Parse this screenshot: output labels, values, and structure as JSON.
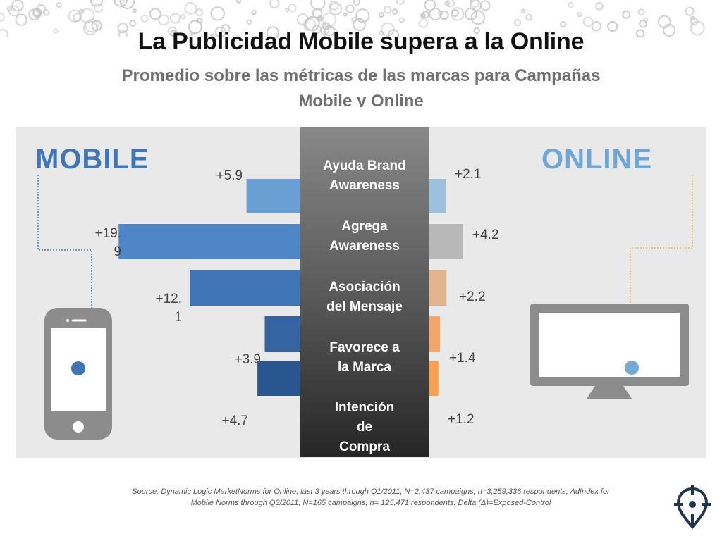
{
  "title": "La Publicidad Mobile supera a la Online",
  "subtitle": "Promedio sobre las métricas de las marcas para Campañas Mobile y Online",
  "labels": {
    "mobile": "MOBILE",
    "online": "ONLINE"
  },
  "categories": [
    "Ayuda Brand\nAwareness",
    "Agrega\nAwareness",
    "Asociación\ndel Mensaje",
    "Favorece a\nla Marca",
    "Intención\nde\nCompra"
  ],
  "value_labels": {
    "mobile": [
      "+5.9",
      "+19.\n9",
      "+12.\n1",
      "+3.9",
      "+4.7"
    ],
    "online": [
      "+2.1",
      "+4.2",
      "+2.2",
      "+1.4",
      "+1.2"
    ]
  },
  "chart_data": {
    "type": "bar",
    "title": "La Publicidad Mobile supera a la Online",
    "subtitle": "Promedio sobre las métricas de las marcas para Campañas Mobile y Online",
    "categories": [
      "Ayuda Brand Awareness",
      "Agrega Awareness",
      "Asociación del Mensaje",
      "Favorece a la Marca",
      "Intención de Compra"
    ],
    "series": [
      {
        "name": "MOBILE",
        "values": [
          5.9,
          19.9,
          12.1,
          3.9,
          4.7
        ]
      },
      {
        "name": "ONLINE",
        "values": [
          2.1,
          4.2,
          2.2,
          1.4,
          1.2
        ]
      }
    ],
    "orientation": "horizontal-diverging",
    "grid": false
  },
  "colors": {
    "mobile_bars": [
      "#6a9fd4",
      "#4f86c7",
      "#3f74b6",
      "#3464a2",
      "#2a568f"
    ],
    "online_bars": [
      "#9cc1dc",
      "#b8b8b8",
      "#e2b48e",
      "#f2a66a",
      "#f7a04f"
    ],
    "device": "#8c8c8c",
    "mobile_dot": "#3f74b6",
    "online_dot": "#77a9d2",
    "mobile_line": "#4a7fc0",
    "online_line": "#f0c030"
  },
  "icons": {
    "phone": "smartphone-icon",
    "monitor": "monitor-icon",
    "logo": "crosshair-logo-icon"
  },
  "source": "Source:  Dynamic Logic MarketNorms for Online, last 3 years through Q1/2011, N=2,437 campaigns, n=3,259,336 respondents; AdIndex for Mobile Norms through Q3/2011, N=165 campaigns, n= 125,471 respondents.  Delta (Δ)=Exposed-Control"
}
